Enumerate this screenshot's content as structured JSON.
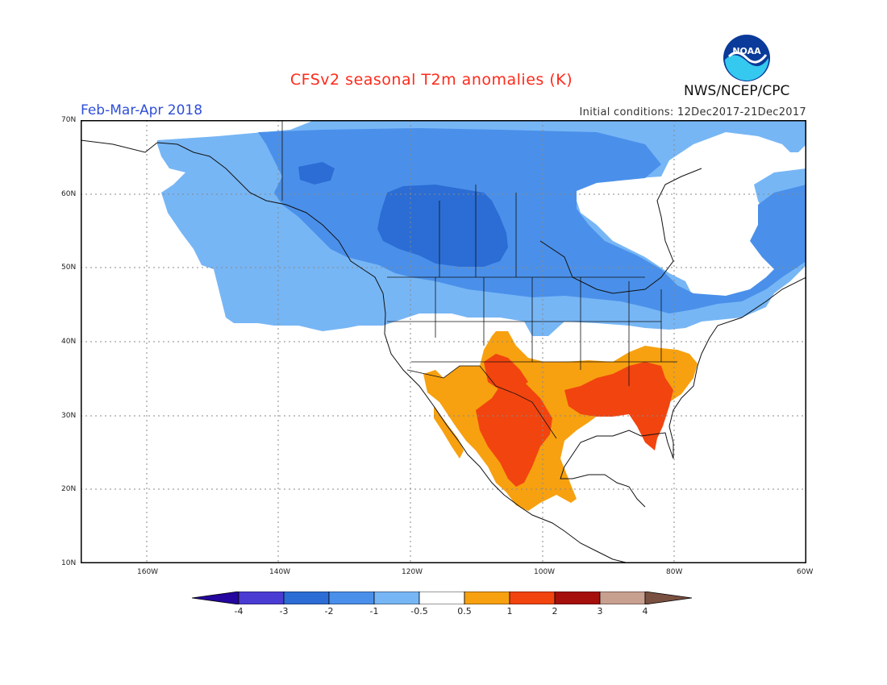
{
  "title": "CFSv2 seasonal T2m anomalies (K)",
  "period": "Feb-Mar-Apr 2018",
  "initial_conditions": "Initial conditions: 12Dec2017-21Dec2017",
  "agency": "NWS/NCEP/CPC",
  "logo_text": "NOAA",
  "map": {
    "region": "North America",
    "lon_range": [
      -170,
      -60
    ],
    "lat_range": [
      10,
      70
    ],
    "lat_labels": [
      "70N",
      "60N",
      "50N",
      "40N",
      "30N",
      "20N",
      "10N"
    ],
    "lon_labels": [
      "160W",
      "140W",
      "120W",
      "100W",
      "80W",
      "60W"
    ],
    "anomaly_regions": [
      {
        "area": "Alaska / Canada / northern US",
        "category": "-1 to -0.5",
        "color": "#77b6f5"
      },
      {
        "area": "Western & central Canada",
        "category": "-2 to -1",
        "color": "#4a90ea"
      },
      {
        "area": "Interior western Canada (Alberta/Saskatchewan)",
        "category": "-3 to -2",
        "color": "#2b6dd4"
      },
      {
        "area": "Southern US / Mexico",
        "category": "0.5 to 1",
        "color": "#f7a110"
      },
      {
        "area": "Southeast US / northern Mexico core",
        "category": "1 to 2",
        "color": "#f2440f"
      }
    ]
  },
  "colorbar": {
    "labels": [
      "-4",
      "-3",
      "-2",
      "-1",
      "-0.5",
      "0.5",
      "1",
      "2",
      "3",
      "4"
    ],
    "colors": [
      "#25069e",
      "#4a3cd3",
      "#2b6dd4",
      "#4a90ea",
      "#77b6f5",
      "#ffffff",
      "#f7a110",
      "#f2440f",
      "#a50f0c",
      "#c8a090",
      "#7a5040"
    ]
  }
}
